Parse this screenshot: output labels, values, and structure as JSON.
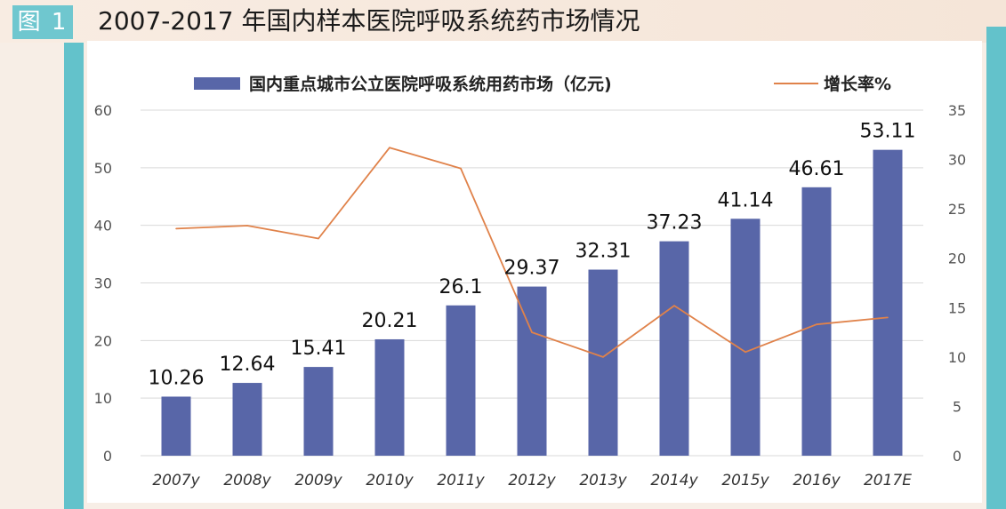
{
  "header": {
    "figure_tag": "图 1",
    "title": "2007-2017 年国内样本医院呼吸系统药市场情况"
  },
  "colors": {
    "bar": "#5866a8",
    "line": "#e0824a",
    "accent_teal": "#63c2cb",
    "grid": "#d9d9d9"
  },
  "chart_data": {
    "type": "bar",
    "categories": [
      "2007y",
      "2008y",
      "2009y",
      "2010y",
      "2011y",
      "2012y",
      "2013y",
      "2014y",
      "2015y",
      "2016y",
      "2017E"
    ],
    "series": [
      {
        "name": "国内重点城市公立医院呼吸系统用药市场（亿元)",
        "type": "bar",
        "axis": "left",
        "values": [
          10.26,
          12.64,
          15.41,
          20.21,
          26.1,
          29.37,
          32.31,
          37.23,
          41.14,
          46.61,
          53.11
        ],
        "labels": [
          "10.26",
          "12.64",
          "15.41",
          "20.21",
          "26.1",
          "29.37",
          "32.31",
          "37.23",
          "41.14",
          "46.61",
          "53.11"
        ]
      },
      {
        "name": "增长率%",
        "type": "line",
        "axis": "right",
        "values": [
          23.0,
          23.3,
          22.0,
          31.2,
          29.1,
          12.5,
          10.0,
          15.2,
          10.5,
          13.3,
          14.0
        ]
      }
    ],
    "y_left": {
      "lim": [
        0,
        60
      ],
      "ticks": [
        "0",
        "10",
        "20",
        "30",
        "40",
        "50",
        "60"
      ]
    },
    "y_right": {
      "lim": [
        0,
        35
      ],
      "ticks": [
        "0",
        "5",
        "10",
        "15",
        "20",
        "25",
        "30",
        "35"
      ]
    },
    "grid": true,
    "legend_position": "top"
  }
}
